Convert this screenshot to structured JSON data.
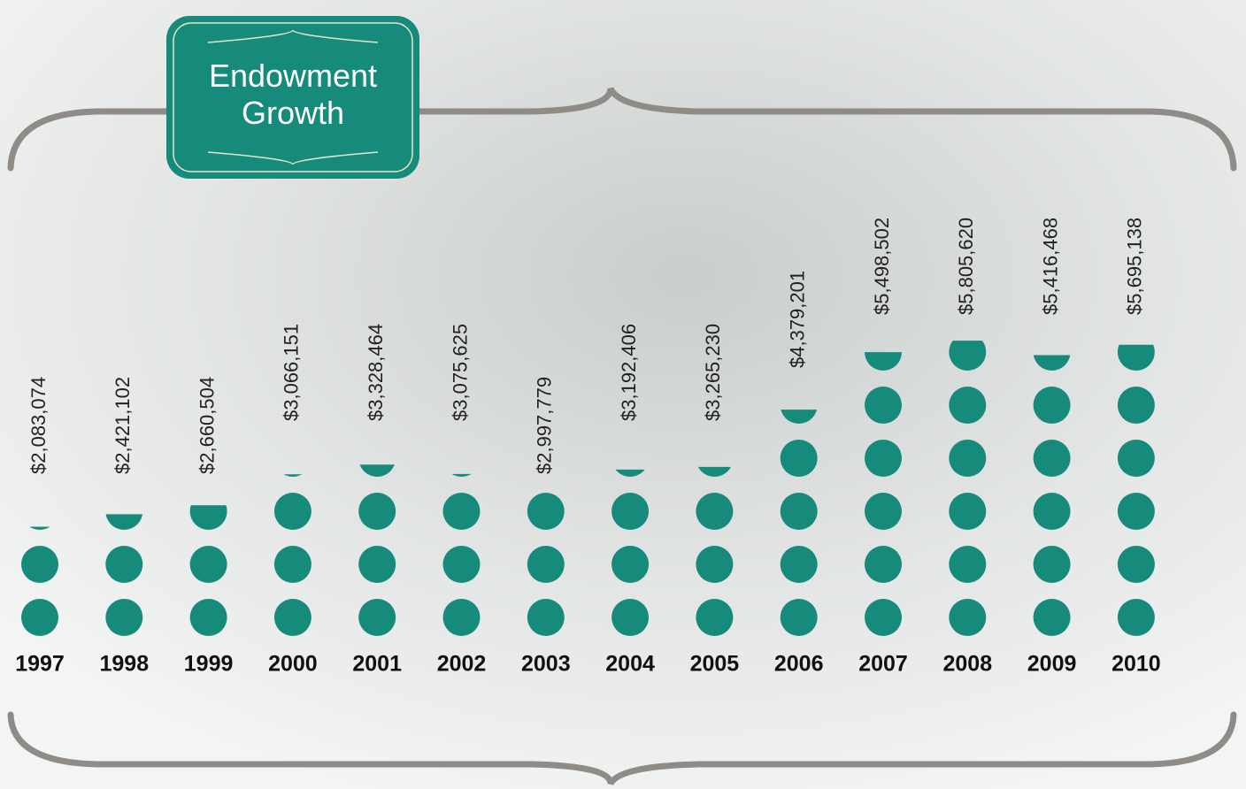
{
  "chart_data": {
    "type": "pictograph",
    "title": "Endowment Growth",
    "categories": [
      "1997",
      "1998",
      "1999",
      "2000",
      "2001",
      "2002",
      "2003",
      "2004",
      "2005",
      "2006",
      "2007",
      "2008",
      "2009",
      "2010"
    ],
    "values": [
      2083074,
      2421102,
      2660504,
      3066151,
      3328464,
      3075625,
      2997779,
      3192406,
      3265230,
      4379201,
      5498502,
      5805620,
      5416468,
      5695138
    ],
    "value_labels": [
      "$2,083,074",
      "$2,421,102",
      "$2,660,504",
      "$3,066,151",
      "$3,328,464",
      "$3,075,625",
      "$2,997,779",
      "$3,192,406",
      "$3,265,230",
      "$4,379,201",
      "$5,498,502",
      "$5,805,620",
      "$5,416,468",
      "$5,695,138"
    ],
    "color": "#168a7b"
  }
}
